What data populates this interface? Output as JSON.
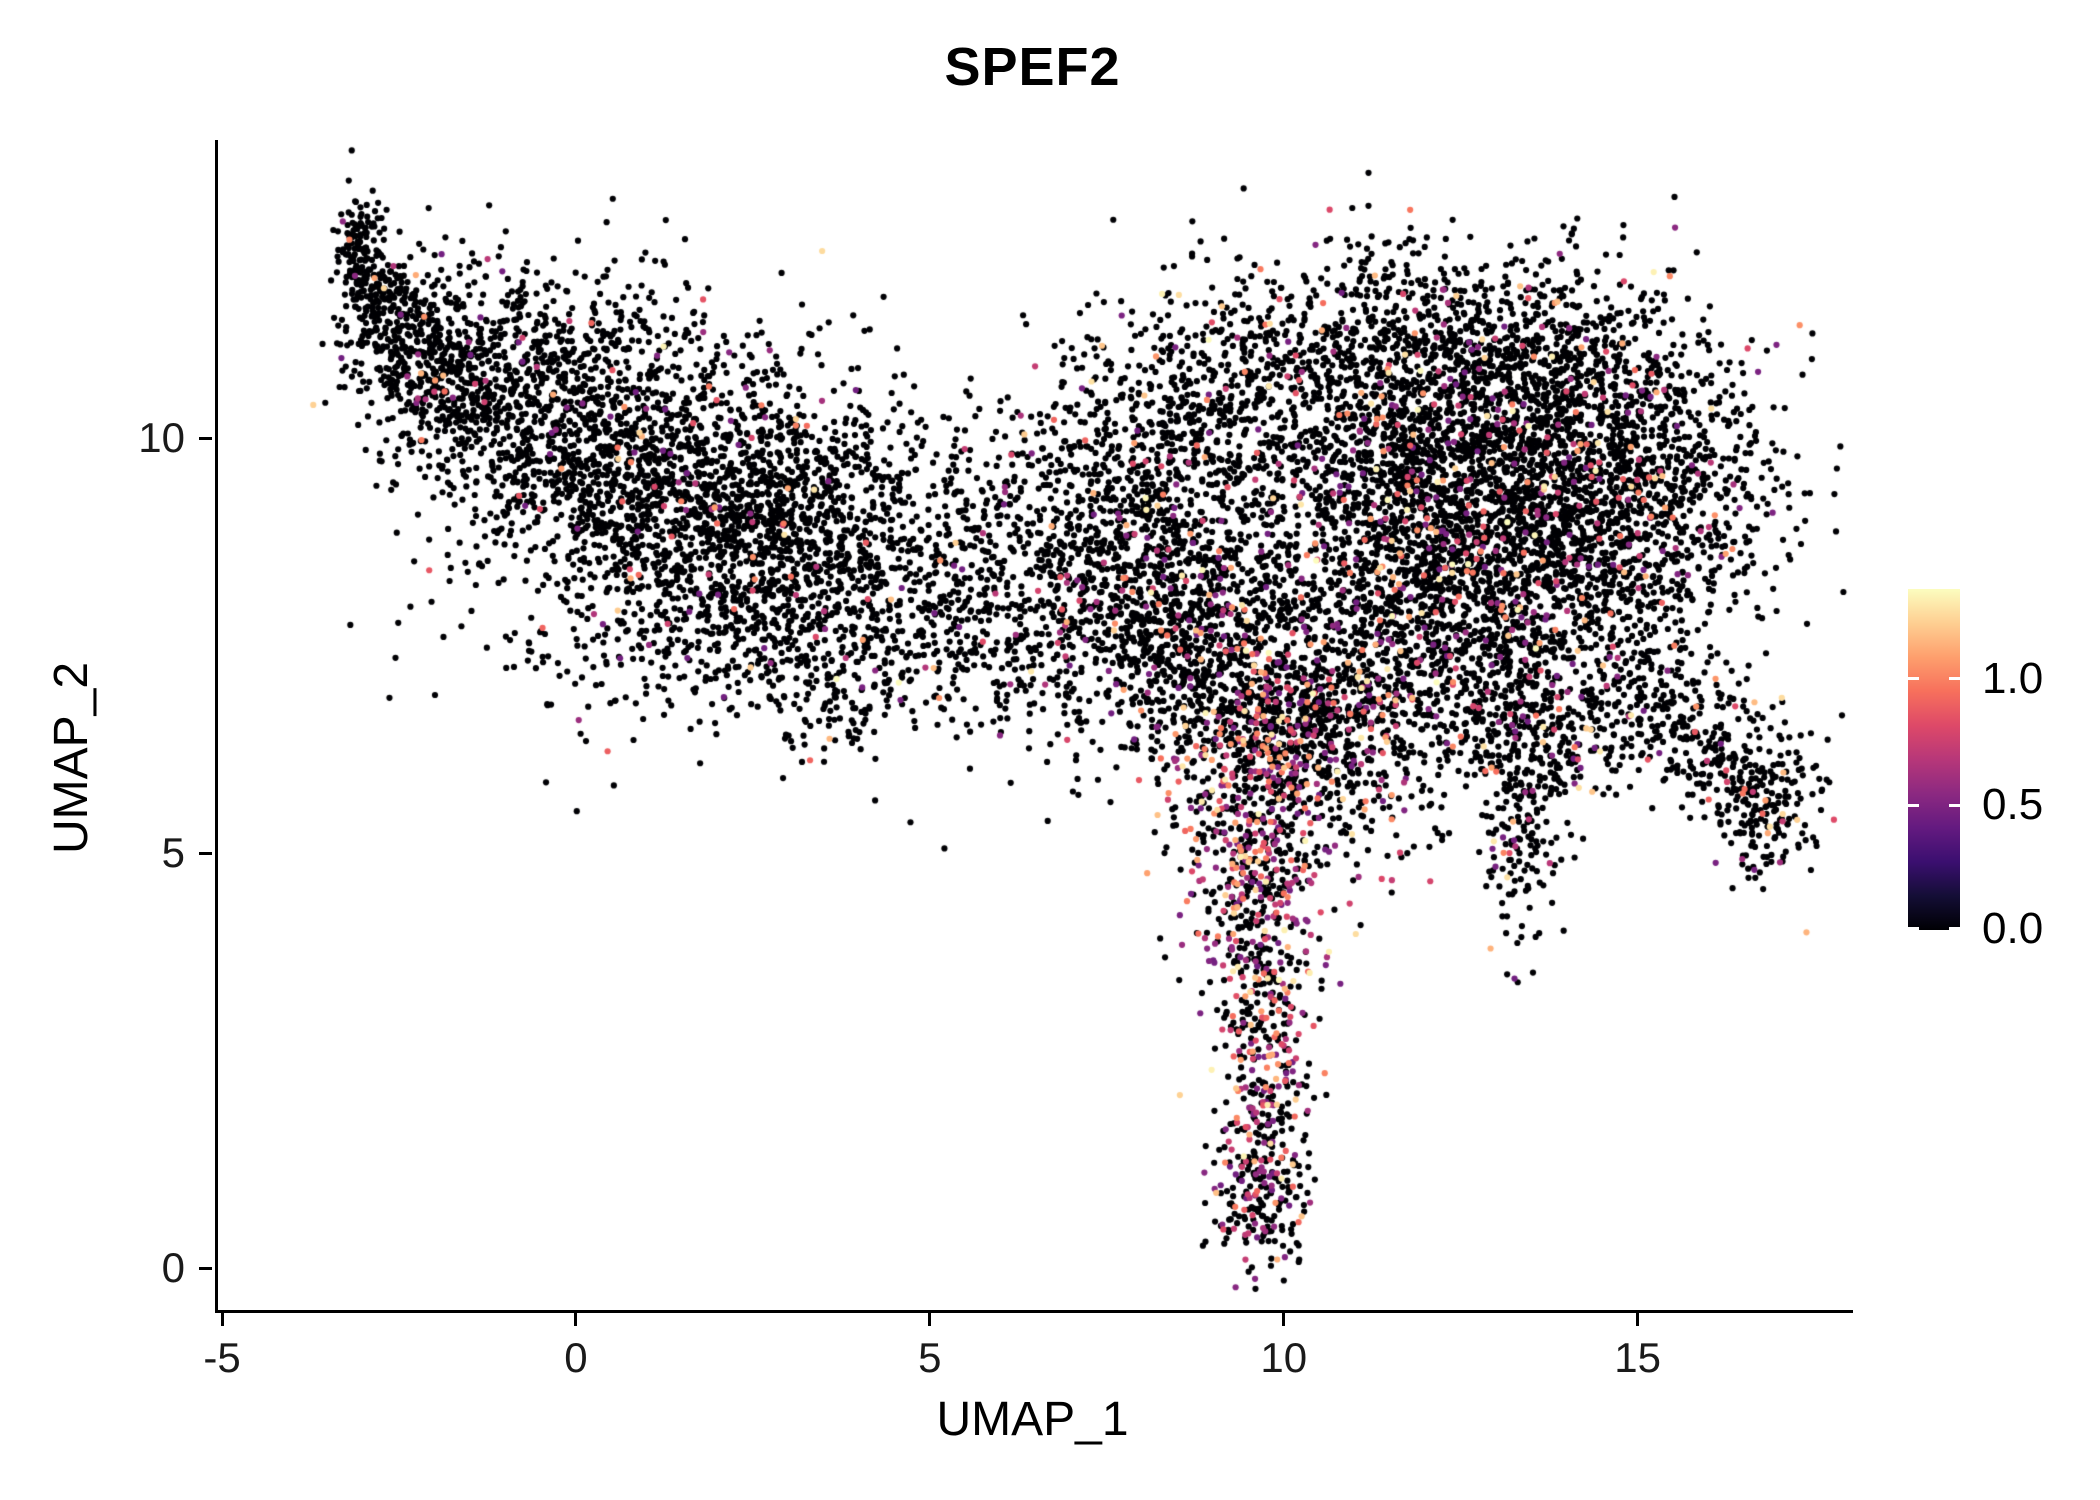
{
  "chart_data": {
    "type": "scatter",
    "title": "SPEF2",
    "xlabel": "UMAP_1",
    "ylabel": "UMAP_2",
    "x_ticks": [
      -5,
      0,
      5,
      10,
      15
    ],
    "y_ticks": [
      0,
      5,
      10
    ],
    "x_domain": [
      -5.1,
      18.0
    ],
    "y_domain": [
      -0.5,
      13.6
    ],
    "grid": false,
    "legend_position": "right",
    "point_radius_px": 3.1,
    "zero_color": "#000004",
    "colormap": [
      "#000004",
      "#140e36",
      "#3b0f70",
      "#641a80",
      "#8c2981",
      "#b73779",
      "#de4968",
      "#f7705c",
      "#fe9f6d",
      "#fecf92",
      "#fcfdbf"
    ],
    "colorbar": {
      "labels": [
        "1.0",
        "0.5",
        "0.0"
      ],
      "values": [
        1.0,
        0.5,
        0.0
      ],
      "max": 1.35
    },
    "seed": 42,
    "clusters": [
      {
        "cx": -3.1,
        "cy": 12.3,
        "sx": 0.13,
        "sy": 0.35,
        "n": 110,
        "rot": 0,
        "p_expr": 0.02
      },
      {
        "cx": -2.8,
        "cy": 11.7,
        "sx": 0.25,
        "sy": 0.4,
        "n": 150,
        "rot": 20,
        "p_expr": 0.02
      },
      {
        "cx": -2.2,
        "cy": 11.0,
        "sx": 0.55,
        "sy": 0.55,
        "n": 380,
        "rot": 0,
        "p_expr": 0.03
      },
      {
        "cx": -0.7,
        "cy": 10.4,
        "sx": 1.05,
        "sy": 0.75,
        "n": 650,
        "rot": -15,
        "p_expr": 0.03
      },
      {
        "cx": 0.2,
        "cy": 11.4,
        "sx": 1.1,
        "sy": 0.45,
        "n": 140,
        "rot": 0,
        "p_expr": 0.02
      },
      {
        "cx": 1.2,
        "cy": 9.4,
        "sx": 1.35,
        "sy": 0.9,
        "n": 1400,
        "rot": -10,
        "p_expr": 0.04
      },
      {
        "cx": 3.2,
        "cy": 8.9,
        "sx": 1.0,
        "sy": 0.9,
        "n": 850,
        "rot": 0,
        "p_expr": 0.04
      },
      {
        "cx": 1.8,
        "cy": 7.5,
        "sx": 1.6,
        "sy": 0.55,
        "n": 300,
        "rot": 0,
        "p_expr": 0.04
      },
      {
        "cx": 3.6,
        "cy": 7.0,
        "sx": 0.7,
        "sy": 0.45,
        "n": 130,
        "rot": 0,
        "p_expr": 0.05
      },
      {
        "cx": 5.2,
        "cy": 8.2,
        "sx": 0.7,
        "sy": 0.8,
        "n": 240,
        "rot": 0,
        "p_expr": 0.05
      },
      {
        "cx": 6.5,
        "cy": 7.9,
        "sx": 0.8,
        "sy": 0.85,
        "n": 300,
        "rot": 0,
        "p_expr": 0.06
      },
      {
        "cx": 6.3,
        "cy": 9.9,
        "sx": 0.85,
        "sy": 0.5,
        "n": 100,
        "rot": 0,
        "p_expr": 0.03
      },
      {
        "cx": 7.9,
        "cy": 8.7,
        "sx": 0.85,
        "sy": 1.15,
        "n": 850,
        "rot": 0,
        "p_expr": 0.07
      },
      {
        "cx": 8.9,
        "cy": 7.5,
        "sx": 0.75,
        "sy": 0.9,
        "n": 550,
        "rot": 0,
        "p_expr": 0.12
      },
      {
        "cx": 8.8,
        "cy": 10.4,
        "sx": 0.8,
        "sy": 0.65,
        "n": 260,
        "rot": 0,
        "p_expr": 0.04
      },
      {
        "cx": 11.2,
        "cy": 11.1,
        "sx": 1.4,
        "sy": 0.65,
        "n": 520,
        "rot": 0,
        "p_expr": 0.05
      },
      {
        "cx": 13.5,
        "cy": 11.2,
        "sx": 1.2,
        "sy": 0.5,
        "n": 300,
        "rot": -10,
        "p_expr": 0.05
      },
      {
        "cx": 12.5,
        "cy": 9.3,
        "sx": 1.7,
        "sy": 1.15,
        "n": 3300,
        "rot": 0,
        "p_expr": 0.09
      },
      {
        "cx": 14.9,
        "cy": 9.4,
        "sx": 1.0,
        "sy": 0.95,
        "n": 750,
        "rot": 0,
        "p_expr": 0.06
      },
      {
        "cx": 12.4,
        "cy": 7.3,
        "sx": 1.5,
        "sy": 0.75,
        "n": 750,
        "rot": 0,
        "p_expr": 0.1
      },
      {
        "cx": 13.6,
        "cy": 6.3,
        "sx": 0.6,
        "sy": 0.5,
        "n": 200,
        "rot": 0,
        "p_expr": 0.12
      },
      {
        "cx": 10.7,
        "cy": 6.3,
        "sx": 0.7,
        "sy": 0.7,
        "n": 380,
        "rot": 0,
        "p_expr": 0.25
      },
      {
        "cx": 15.9,
        "cy": 6.4,
        "sx": 0.85,
        "sy": 0.4,
        "n": 280,
        "rot": -25,
        "p_expr": 0.1
      },
      {
        "cx": 16.8,
        "cy": 5.6,
        "sx": 0.35,
        "sy": 0.45,
        "n": 170,
        "rot": 0,
        "p_expr": 0.12
      },
      {
        "cx": 13.3,
        "cy": 5.2,
        "sx": 0.28,
        "sy": 0.75,
        "n": 150,
        "rot": 0,
        "p_expr": 0.15
      },
      {
        "cx": 10.2,
        "cy": 6.7,
        "sx": 0.6,
        "sy": 0.5,
        "n": 220,
        "rot": 0,
        "p_expr": 0.3
      },
      {
        "cx": 9.4,
        "cy": 5.9,
        "sx": 0.55,
        "sy": 0.8,
        "n": 300,
        "rot": 0,
        "p_expr": 0.42
      },
      {
        "cx": 9.7,
        "cy": 4.6,
        "sx": 0.5,
        "sy": 0.7,
        "n": 280,
        "rot": 0,
        "p_expr": 0.45
      },
      {
        "cx": 9.6,
        "cy": 3.2,
        "sx": 0.38,
        "sy": 0.7,
        "n": 210,
        "rot": 0,
        "p_expr": 0.4
      },
      {
        "cx": 9.7,
        "cy": 1.9,
        "sx": 0.3,
        "sy": 0.55,
        "n": 150,
        "rot": 0,
        "p_expr": 0.35
      },
      {
        "cx": 9.6,
        "cy": 0.8,
        "sx": 0.33,
        "sy": 0.4,
        "n": 170,
        "rot": 0,
        "p_expr": 0.3
      }
    ]
  }
}
